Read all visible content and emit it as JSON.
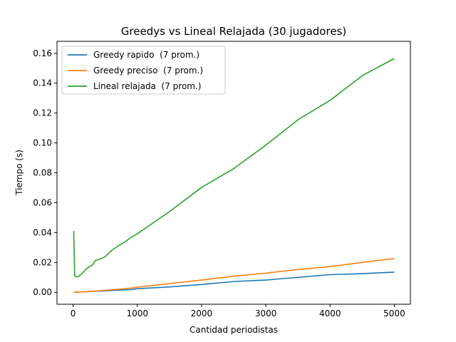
{
  "chart_data": {
    "type": "line",
    "title": "Greedys vs Lineal Relajada (30 jugadores)",
    "xlabel": "Cantidad periodistas",
    "ylabel": "Tiempo (s)",
    "xlim": [
      -250,
      5250
    ],
    "ylim": [
      -0.008,
      0.168
    ],
    "xticks": [
      0,
      1000,
      2000,
      3000,
      4000,
      5000
    ],
    "xtick_labels": [
      "0",
      "1000",
      "2000",
      "3000",
      "4000",
      "5000"
    ],
    "yticks": [
      0.0,
      0.02,
      0.04,
      0.06,
      0.08,
      0.1,
      0.12,
      0.14,
      0.16
    ],
    "ytick_labels": [
      "0.00",
      "0.02",
      "0.04",
      "0.06",
      "0.08",
      "0.10",
      "0.12",
      "0.14",
      "0.16"
    ],
    "grid": false,
    "legend_position": "top-left",
    "series": [
      {
        "name": "Greedy rapido  (7 prom.)",
        "color": "#1f77b4",
        "x": [
          10,
          50,
          100,
          200,
          300,
          400,
          500,
          600,
          700,
          800,
          900,
          1000,
          1500,
          2000,
          2500,
          3000,
          3500,
          4000,
          4500,
          5000
        ],
        "y": [
          0.0,
          0.0001,
          0.0002,
          0.0004,
          0.0006,
          0.0008,
          0.001,
          0.0012,
          0.0014,
          0.0016,
          0.0018,
          0.0024,
          0.0036,
          0.0052,
          0.0072,
          0.0082,
          0.01,
          0.0118,
          0.0125,
          0.0135
        ]
      },
      {
        "name": "Greedy preciso  (7 prom.)",
        "color": "#ff7f0e",
        "x": [
          10,
          50,
          100,
          200,
          300,
          400,
          500,
          600,
          700,
          800,
          900,
          1000,
          1500,
          2000,
          2500,
          3000,
          3500,
          4000,
          4500,
          5000
        ],
        "y": [
          0.0,
          0.0001,
          0.0002,
          0.0004,
          0.0007,
          0.001,
          0.0013,
          0.0017,
          0.002,
          0.0024,
          0.0028,
          0.0034,
          0.0058,
          0.0082,
          0.0108,
          0.0128,
          0.0153,
          0.0172,
          0.02,
          0.0226
        ]
      },
      {
        "name": "Lineal relajada  (7 prom.)",
        "color": "#2ca02c",
        "x": [
          10,
          25,
          50,
          100,
          150,
          200,
          250,
          300,
          350,
          400,
          450,
          500,
          600,
          700,
          800,
          900,
          1000,
          1500,
          2000,
          2500,
          3000,
          3500,
          4000,
          4500,
          5000
        ],
        "y": [
          0.041,
          0.011,
          0.0102,
          0.011,
          0.013,
          0.0155,
          0.017,
          0.0182,
          0.0213,
          0.022,
          0.0228,
          0.0238,
          0.028,
          0.031,
          0.0335,
          0.0367,
          0.0392,
          0.054,
          0.0702,
          0.0828,
          0.0985,
          0.1155,
          0.1285,
          0.145,
          0.1565
        ]
      }
    ]
  }
}
